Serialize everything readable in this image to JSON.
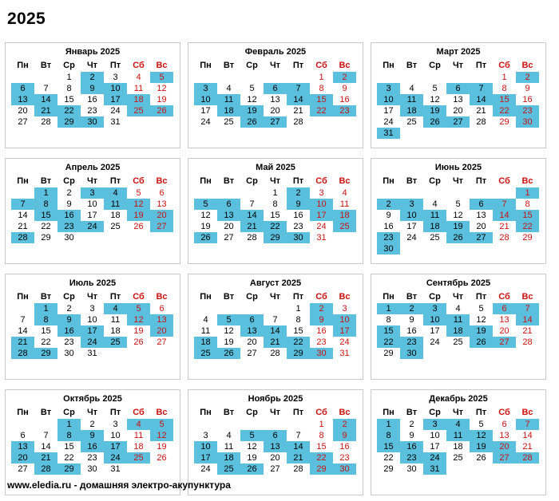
{
  "year_title": "2025",
  "footer": "www.eledia.ru - домашняя электро-акупунктура",
  "colors": {
    "highlight": "#5bc0de",
    "weekend_text": "#cc1111",
    "border": "#c9c9c9"
  },
  "weekdays": [
    "Пн",
    "Вт",
    "Ср",
    "Чт",
    "Пт",
    "Сб",
    "Вс"
  ],
  "months": [
    {
      "title": "Январь 2025",
      "weeks": [
        [
          "",
          "",
          "1",
          "2",
          "3",
          "4",
          "5"
        ],
        [
          "6",
          "7",
          "8",
          "9",
          "10",
          "11",
          "12"
        ],
        [
          "13",
          "14",
          "15",
          "16",
          "17",
          "18",
          "19"
        ],
        [
          "20",
          "21",
          "22",
          "23",
          "24",
          "25",
          "26"
        ],
        [
          "27",
          "28",
          "29",
          "30",
          "31",
          "",
          ""
        ]
      ],
      "highlighted": [
        "2",
        "5",
        "6",
        "9",
        "10",
        "13",
        "14",
        "17",
        "18",
        "21",
        "22",
        "25",
        "26",
        "29",
        "30"
      ]
    },
    {
      "title": "Февраль 2025",
      "weeks": [
        [
          "",
          "",
          "",
          "",
          "",
          "1",
          "2"
        ],
        [
          "3",
          "4",
          "5",
          "6",
          "7",
          "8",
          "9"
        ],
        [
          "10",
          "11",
          "12",
          "13",
          "14",
          "15",
          "16"
        ],
        [
          "17",
          "18",
          "19",
          "20",
          "21",
          "22",
          "23"
        ],
        [
          "24",
          "25",
          "26",
          "27",
          "28",
          "",
          ""
        ]
      ],
      "highlighted": [
        "2",
        "3",
        "6",
        "7",
        "10",
        "11",
        "14",
        "15",
        "18",
        "19",
        "22",
        "23",
        "26",
        "27"
      ]
    },
    {
      "title": "Март 2025",
      "weeks": [
        [
          "",
          "",
          "",
          "",
          "",
          "1",
          "2"
        ],
        [
          "3",
          "4",
          "5",
          "6",
          "7",
          "8",
          "9"
        ],
        [
          "10",
          "11",
          "12",
          "13",
          "14",
          "15",
          "16"
        ],
        [
          "17",
          "18",
          "19",
          "20",
          "21",
          "22",
          "23"
        ],
        [
          "24",
          "25",
          "26",
          "27",
          "28",
          "29",
          "30"
        ],
        [
          "31",
          "",
          "",
          "",
          "",
          "",
          ""
        ]
      ],
      "highlighted": [
        "2",
        "3",
        "6",
        "7",
        "10",
        "11",
        "14",
        "15",
        "18",
        "19",
        "22",
        "23",
        "26",
        "27",
        "30",
        "31"
      ]
    },
    {
      "title": "Апрель 2025",
      "weeks": [
        [
          "",
          "1",
          "2",
          "3",
          "4",
          "5",
          "6"
        ],
        [
          "7",
          "8",
          "9",
          "10",
          "11",
          "12",
          "13"
        ],
        [
          "14",
          "15",
          "16",
          "17",
          "18",
          "19",
          "20"
        ],
        [
          "21",
          "22",
          "23",
          "24",
          "25",
          "26",
          "27"
        ],
        [
          "28",
          "29",
          "30",
          "",
          "",
          "",
          ""
        ]
      ],
      "highlighted": [
        "1",
        "3",
        "4",
        "7",
        "8",
        "11",
        "12",
        "15",
        "16",
        "19",
        "20",
        "23",
        "24",
        "27",
        "28"
      ]
    },
    {
      "title": "Май 2025",
      "weeks": [
        [
          "",
          "",
          "",
          "1",
          "2",
          "3",
          "4"
        ],
        [
          "5",
          "6",
          "7",
          "8",
          "9",
          "10",
          "11"
        ],
        [
          "12",
          "13",
          "14",
          "15",
          "16",
          "17",
          "18"
        ],
        [
          "19",
          "20",
          "21",
          "22",
          "23",
          "24",
          "25"
        ],
        [
          "26",
          "27",
          "28",
          "29",
          "30",
          "31",
          ""
        ]
      ],
      "highlighted": [
        "2",
        "5",
        "6",
        "9",
        "10",
        "13",
        "14",
        "17",
        "18",
        "21",
        "22",
        "25",
        "26",
        "29",
        "30"
      ]
    },
    {
      "title": "Июнь 2025",
      "weeks": [
        [
          "",
          "",
          "",
          "",
          "",
          "",
          "1"
        ],
        [
          "2",
          "3",
          "4",
          "5",
          "6",
          "7",
          "8"
        ],
        [
          "9",
          "10",
          "11",
          "12",
          "13",
          "14",
          "15"
        ],
        [
          "16",
          "17",
          "18",
          "19",
          "20",
          "21",
          "22"
        ],
        [
          "23",
          "24",
          "25",
          "26",
          "27",
          "28",
          "29"
        ],
        [
          "30",
          "",
          "",
          "",
          "",
          "",
          ""
        ]
      ],
      "highlighted": [
        "1",
        "2",
        "3",
        "6",
        "7",
        "10",
        "11",
        "14",
        "15",
        "18",
        "19",
        "22",
        "23",
        "26",
        "27",
        "30"
      ]
    },
    {
      "title": "Июль 2025",
      "weeks": [
        [
          "",
          "1",
          "2",
          "3",
          "4",
          "5",
          "6"
        ],
        [
          "7",
          "8",
          "9",
          "10",
          "11",
          "12",
          "13"
        ],
        [
          "14",
          "15",
          "16",
          "17",
          "18",
          "19",
          "20"
        ],
        [
          "21",
          "22",
          "23",
          "24",
          "25",
          "26",
          "27"
        ],
        [
          "28",
          "29",
          "30",
          "31",
          "",
          "",
          ""
        ]
      ],
      "highlighted": [
        "1",
        "4",
        "5",
        "8",
        "9",
        "12",
        "13",
        "16",
        "17",
        "20",
        "21",
        "24",
        "25",
        "28",
        "29"
      ]
    },
    {
      "title": "Август 2025",
      "weeks": [
        [
          "",
          "",
          "",
          "",
          "1",
          "2",
          "3"
        ],
        [
          "4",
          "5",
          "6",
          "7",
          "8",
          "9",
          "10"
        ],
        [
          "11",
          "12",
          "13",
          "14",
          "15",
          "16",
          "17"
        ],
        [
          "18",
          "19",
          "20",
          "21",
          "22",
          "23",
          "24"
        ],
        [
          "25",
          "26",
          "27",
          "28",
          "29",
          "30",
          "31"
        ]
      ],
      "highlighted": [
        "2",
        "5",
        "6",
        "9",
        "10",
        "13",
        "14",
        "17",
        "18",
        "21",
        "22",
        "25",
        "26",
        "29",
        "30"
      ]
    },
    {
      "title": "Сентябрь 2025",
      "weeks": [
        [
          "1",
          "2",
          "3",
          "4",
          "5",
          "6",
          "7"
        ],
        [
          "8",
          "9",
          "10",
          "11",
          "12",
          "13",
          "14"
        ],
        [
          "15",
          "16",
          "17",
          "18",
          "19",
          "20",
          "21"
        ],
        [
          "22",
          "23",
          "24",
          "25",
          "26",
          "27",
          "28"
        ],
        [
          "29",
          "30",
          "",
          "",
          "",
          "",
          ""
        ]
      ],
      "highlighted": [
        "1",
        "2",
        "3",
        "6",
        "7",
        "10",
        "11",
        "14",
        "15",
        "18",
        "19",
        "22",
        "23",
        "26",
        "27",
        "30"
      ]
    },
    {
      "title": "Октябрь 2025",
      "weeks": [
        [
          "",
          "",
          "1",
          "2",
          "3",
          "4",
          "5"
        ],
        [
          "6",
          "7",
          "8",
          "9",
          "10",
          "11",
          "12"
        ],
        [
          "13",
          "14",
          "15",
          "16",
          "17",
          "18",
          "19"
        ],
        [
          "20",
          "21",
          "22",
          "23",
          "24",
          "25",
          "26"
        ],
        [
          "27",
          "28",
          "29",
          "30",
          "31",
          "",
          ""
        ]
      ],
      "highlighted": [
        "1",
        "4",
        "5",
        "8",
        "9",
        "12",
        "13",
        "16",
        "17",
        "20",
        "21",
        "24",
        "25",
        "28",
        "29"
      ]
    },
    {
      "title": "Ноябрь 2025",
      "weeks": [
        [
          "",
          "",
          "",
          "",
          "",
          "1",
          "2"
        ],
        [
          "3",
          "4",
          "5",
          "6",
          "7",
          "8",
          "9"
        ],
        [
          "10",
          "11",
          "12",
          "13",
          "14",
          "15",
          "16"
        ],
        [
          "17",
          "18",
          "19",
          "20",
          "21",
          "22",
          "23"
        ],
        [
          "24",
          "25",
          "26",
          "27",
          "28",
          "29",
          "30"
        ]
      ],
      "highlighted": [
        "2",
        "5",
        "6",
        "9",
        "10",
        "13",
        "14",
        "17",
        "18",
        "21",
        "22",
        "25",
        "26",
        "29",
        "30"
      ]
    },
    {
      "title": "Декабрь 2025",
      "weeks": [
        [
          "1",
          "2",
          "3",
          "4",
          "5",
          "6",
          "7"
        ],
        [
          "8",
          "9",
          "10",
          "11",
          "12",
          "13",
          "14"
        ],
        [
          "15",
          "16",
          "17",
          "18",
          "19",
          "20",
          "21"
        ],
        [
          "22",
          "23",
          "24",
          "25",
          "26",
          "27",
          "28"
        ],
        [
          "29",
          "30",
          "31",
          "",
          "",
          "",
          ""
        ]
      ],
      "highlighted": [
        "1",
        "3",
        "4",
        "7",
        "8",
        "11",
        "12",
        "15",
        "16",
        "19",
        "20",
        "23",
        "24",
        "27",
        "28",
        "31"
      ]
    }
  ]
}
